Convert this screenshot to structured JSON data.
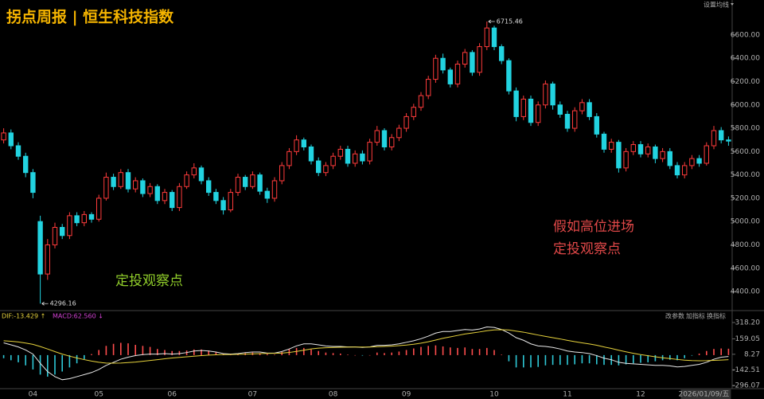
{
  "chart_data": [
    {
      "type": "candlestick",
      "title": "拐点周报 | 恒生科技指数",
      "title_color": "#f5b400",
      "categories": [
        null,
        null,
        null,
        null,
        "04",
        null,
        null,
        null,
        null,
        null,
        null,
        null,
        null,
        "05",
        null,
        null,
        null,
        null,
        null,
        null,
        null,
        null,
        null,
        "06",
        null,
        null,
        null,
        null,
        null,
        null,
        null,
        null,
        null,
        null,
        "07",
        null,
        null,
        null,
        null,
        null,
        null,
        null,
        null,
        null,
        null,
        "08",
        null,
        null,
        null,
        null,
        null,
        null,
        null,
        null,
        null,
        "09",
        null,
        null,
        null,
        null,
        null,
        null,
        null,
        null,
        null,
        null,
        null,
        "10",
        null,
        null,
        null,
        null,
        null,
        null,
        null,
        null,
        null,
        "11",
        null,
        null,
        null,
        null,
        null,
        null,
        null,
        null,
        null,
        "12",
        null,
        null,
        null,
        null,
        null,
        null,
        null,
        null,
        null,
        null,
        null,
        "2026/01/09/五"
      ],
      "open": [
        5700,
        5760,
        5650,
        5560,
        5420,
        5000,
        4550,
        4800,
        4950,
        4880,
        5050,
        4990,
        5060,
        5020,
        5200,
        5380,
        5300,
        5420,
        5280,
        5350,
        5240,
        5300,
        5180,
        5250,
        5120,
        5300,
        5400,
        5460,
        5350,
        5250,
        5180,
        5100,
        5250,
        5380,
        5300,
        5400,
        5260,
        5200,
        5350,
        5480,
        5600,
        5700,
        5640,
        5520,
        5420,
        5480,
        5560,
        5620,
        5500,
        5580,
        5520,
        5680,
        5780,
        5640,
        5720,
        5800,
        5900,
        5980,
        6080,
        6220,
        6400,
        6300,
        6180,
        6350,
        6450,
        6280,
        6500,
        6660,
        6500,
        6380,
        6120,
        5900,
        6050,
        5850,
        6000,
        6180,
        6000,
        5920,
        5800,
        5950,
        6020,
        5900,
        5750,
        5620,
        5680,
        5460,
        5600,
        5660,
        5580,
        5640,
        5540,
        5600,
        5480,
        5400,
        5480,
        5540,
        5500,
        5650,
        5780,
        5700
      ],
      "high": [
        5800,
        5790,
        5680,
        5590,
        5450,
        5050,
        4850,
        4990,
        4980,
        5080,
        5080,
        5090,
        5080,
        5230,
        5420,
        5410,
        5450,
        5450,
        5380,
        5370,
        5330,
        5320,
        5280,
        5270,
        5330,
        5430,
        5500,
        5480,
        5380,
        5280,
        5210,
        5280,
        5410,
        5400,
        5430,
        5420,
        5290,
        5380,
        5510,
        5630,
        5740,
        5720,
        5660,
        5550,
        5510,
        5590,
        5650,
        5650,
        5610,
        5610,
        5710,
        5820,
        5800,
        5750,
        5830,
        5930,
        6010,
        6110,
        6250,
        6430,
        6440,
        6320,
        6380,
        6480,
        6470,
        6530,
        6715.46,
        6680,
        6520,
        6400,
        6150,
        6080,
        6080,
        6030,
        6210,
        6200,
        6030,
        5950,
        5980,
        6050,
        6050,
        5930,
        5770,
        5710,
        5700,
        5630,
        5690,
        5690,
        5670,
        5660,
        5630,
        5630,
        5510,
        5510,
        5570,
        5570,
        5680,
        5820,
        5810,
        5730
      ],
      "low": [
        5670,
        5620,
        5530,
        5380,
        5200,
        4296.16,
        4500,
        4770,
        4850,
        4850,
        4960,
        4960,
        4990,
        5000,
        5180,
        5270,
        5280,
        5250,
        5250,
        5210,
        5210,
        5150,
        5150,
        5090,
        5090,
        5280,
        5370,
        5320,
        5220,
        5150,
        5060,
        5080,
        5220,
        5270,
        5280,
        5230,
        5160,
        5170,
        5320,
        5450,
        5570,
        5610,
        5490,
        5390,
        5390,
        5450,
        5530,
        5470,
        5470,
        5490,
        5490,
        5650,
        5610,
        5610,
        5690,
        5770,
        5870,
        5950,
        6050,
        6190,
        6270,
        6150,
        6150,
        6320,
        6250,
        6250,
        6470,
        6470,
        6350,
        6090,
        5860,
        5870,
        5820,
        5820,
        5970,
        5960,
        5890,
        5770,
        5770,
        5920,
        5870,
        5720,
        5590,
        5590,
        5420,
        5430,
        5570,
        5550,
        5550,
        5500,
        5510,
        5450,
        5370,
        5370,
        5450,
        5470,
        5480,
        5620,
        5670,
        5650
      ],
      "close": [
        5760,
        5650,
        5560,
        5420,
        5250,
        4550,
        4800,
        4950,
        4880,
        5050,
        4990,
        5060,
        5020,
        5200,
        5380,
        5300,
        5420,
        5280,
        5350,
        5240,
        5300,
        5180,
        5250,
        5120,
        5300,
        5400,
        5460,
        5350,
        5250,
        5180,
        5100,
        5250,
        5380,
        5300,
        5400,
        5260,
        5200,
        5350,
        5480,
        5600,
        5700,
        5640,
        5520,
        5420,
        5480,
        5560,
        5620,
        5500,
        5580,
        5520,
        5680,
        5780,
        5640,
        5720,
        5800,
        5900,
        5980,
        6080,
        6220,
        6400,
        6300,
        6180,
        6350,
        6450,
        6280,
        6500,
        6660,
        6500,
        6380,
        6120,
        5900,
        6050,
        5850,
        6000,
        6180,
        6000,
        5920,
        5800,
        5950,
        6020,
        5900,
        5750,
        5620,
        5680,
        5460,
        5600,
        5660,
        5580,
        5640,
        5540,
        5600,
        5480,
        5400,
        5480,
        5540,
        5500,
        5650,
        5780,
        5700,
        5690
      ],
      "up_color": "#ff3b3b",
      "down_color": "#22d3e0",
      "ylim": [
        4250,
        6900
      ],
      "yticks": [
        {
          "value": 4400,
          "label": "4400.00"
        },
        {
          "value": 4600,
          "label": "4600.00"
        },
        {
          "value": 4800,
          "label": "4800.00"
        },
        {
          "value": 5000,
          "label": "5000.00"
        },
        {
          "value": 5200,
          "label": "5200.00"
        },
        {
          "value": 5400,
          "label": "5400.00"
        },
        {
          "value": 5600,
          "label": "5600.00"
        },
        {
          "value": 5800,
          "label": "5800.00"
        },
        {
          "value": 6000,
          "label": "6000.00"
        },
        {
          "value": 6200,
          "label": "6200.00"
        },
        {
          "value": 6400,
          "label": "6400.00"
        },
        {
          "value": 6600,
          "label": "6600.00"
        }
      ],
      "annotations": [
        {
          "lines": [
            "定投观察点"
          ],
          "color": "#8fcc2a"
        },
        {
          "lines": [
            "假如高位进场",
            "定投观察点"
          ],
          "color": "#e04848"
        }
      ],
      "ui": {
        "ma_settings": "设置均线",
        "buttons": [
          "改参数",
          "加指标",
          "换指标"
        ]
      }
    },
    {
      "type": "macd",
      "legend": [
        {
          "text": "DIF:-13.429 ↑",
          "color": "#e6d23c"
        },
        {
          "text": "MACD:62.560 ↓",
          "color": "#d040d0"
        }
      ],
      "series": [
        {
          "color": "#e8e8e8",
          "values": [
            120,
            100,
            80,
            50,
            10,
            -80,
            -160,
            -210,
            -240,
            -230,
            -210,
            -190,
            -170,
            -140,
            -100,
            -70,
            -40,
            -20,
            -5,
            5,
            10,
            10,
            15,
            10,
            15,
            25,
            40,
            45,
            40,
            30,
            15,
            10,
            15,
            25,
            30,
            30,
            20,
            20,
            35,
            60,
            90,
            110,
            110,
            100,
            90,
            85,
            85,
            80,
            80,
            75,
            80,
            95,
            95,
            100,
            110,
            125,
            140,
            160,
            185,
            215,
            230,
            230,
            240,
            250,
            245,
            255,
            275,
            270,
            250,
            215,
            170,
            145,
            110,
            90,
            85,
            75,
            60,
            40,
            30,
            25,
            15,
            -5,
            -30,
            -45,
            -70,
            -80,
            -85,
            -90,
            -95,
            -100,
            -100,
            -105,
            -115,
            -110,
            -100,
            -90,
            -70,
            -40,
            -20,
            -13.429
          ]
        },
        {
          "color": "#e6d23c",
          "values": [
            140,
            135,
            128,
            118,
            105,
            84,
            60,
            34,
            10,
            -10,
            -28,
            -44,
            -58,
            -70,
            -77,
            -78,
            -77,
            -73,
            -68,
            -60,
            -52,
            -44,
            -36,
            -28,
            -22,
            -16,
            -10,
            -5,
            0,
            3,
            5,
            6,
            8,
            10,
            12,
            15,
            17,
            18,
            20,
            26,
            36,
            48,
            60,
            68,
            72,
            75,
            77,
            78,
            79,
            79,
            79,
            82,
            85,
            88,
            92,
            98,
            106,
            117,
            130,
            147,
            164,
            178,
            192,
            206,
            216,
            226,
            238,
            246,
            248,
            245,
            234,
            224,
            210,
            196,
            183,
            170,
            158,
            144,
            131,
            120,
            109,
            96,
            80,
            65,
            48,
            32,
            18,
            5,
            -6,
            -16,
            -26,
            -34,
            -42,
            -49,
            -53,
            -55,
            -54,
            -51,
            -48,
            -44.71
          ]
        }
      ],
      "histogram": [
        -30,
        -50,
        -70,
        -100,
        -140,
        -190,
        -210,
        -190,
        -160,
        -120,
        -80,
        -40,
        10,
        50,
        90,
        110,
        120,
        115,
        100,
        90,
        80,
        60,
        50,
        40,
        40,
        45,
        55,
        55,
        45,
        30,
        10,
        5,
        10,
        20,
        25,
        20,
        10,
        5,
        30,
        60,
        70,
        70,
        55,
        40,
        25,
        20,
        15,
        5,
        0,
        -5,
        0,
        25,
        20,
        25,
        35,
        50,
        65,
        80,
        90,
        95,
        85,
        75,
        70,
        75,
        60,
        60,
        70,
        50,
        5,
        -60,
        -120,
        -120,
        -120,
        -115,
        -100,
        -95,
        -95,
        -95,
        -90,
        -80,
        -80,
        -90,
        -95,
        -95,
        -100,
        -90,
        -80,
        -75,
        -70,
        -60,
        -50,
        -45,
        -50,
        -30,
        -5,
        15,
        40,
        60,
        65,
        62.56
      ],
      "positive_color": "#ff4d4d",
      "negative_color": "#2ec8d6",
      "ylim": [
        -327,
        411
      ],
      "yticks": [
        {
          "value": 318.2,
          "label": "318.20"
        },
        159.05,
        8.27,
        -142.51,
        -296.07
      ]
    }
  ]
}
